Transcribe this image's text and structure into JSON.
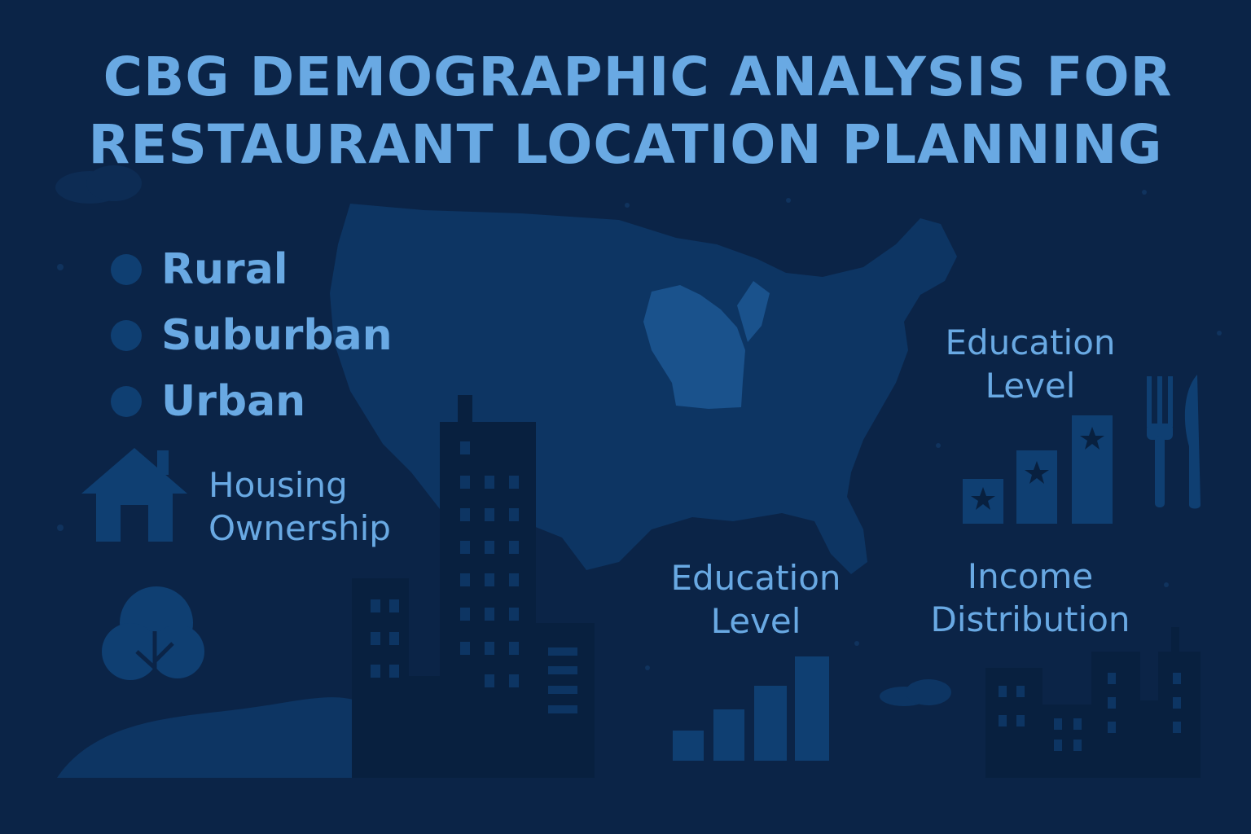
{
  "title": {
    "line1": "CBG DEMOGRAPHIC ANALYSIS FOR",
    "line2": "RESTAURANT LOCATION PLANNING"
  },
  "legend": [
    {
      "label": "Rural"
    },
    {
      "label": "Suburban"
    },
    {
      "label": "Urban"
    }
  ],
  "labels": {
    "housing": [
      "Housing",
      "Ownership"
    ],
    "education_top": [
      "Education",
      "Level"
    ],
    "education_bottom": [
      "Education",
      "Level"
    ],
    "income": [
      "Income",
      "Distribution"
    ]
  },
  "colors": {
    "background": "#0b2447",
    "text": "#69a9e3",
    "map": "#0d3563",
    "highlight_state": "#1a528c",
    "silhouette": "#08203f"
  },
  "icons": [
    "house-icon",
    "tree-icon",
    "skyscraper-icon",
    "fork-icon",
    "knife-icon",
    "star-bar-chart-icon",
    "bar-chart-icon",
    "cityscape-icon",
    "us-map"
  ]
}
